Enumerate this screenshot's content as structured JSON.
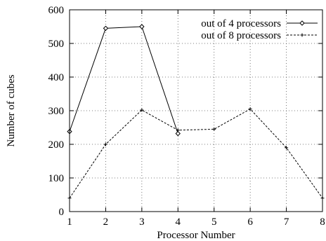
{
  "chart_data": {
    "type": "line",
    "title": "",
    "xlabel": "Processor Number",
    "ylabel": "Number of cubes",
    "x": [
      1,
      2,
      3,
      4,
      5,
      6,
      7,
      8
    ],
    "xlim": [
      1,
      8
    ],
    "ylim": [
      0,
      600
    ],
    "xticks": [
      1,
      2,
      3,
      4,
      5,
      6,
      7,
      8
    ],
    "yticks": [
      0,
      100,
      200,
      300,
      400,
      500,
      600
    ],
    "grid": true,
    "legend_position": "top-right",
    "series": [
      {
        "name": "out of 4 processors",
        "x": [
          1,
          2,
          3,
          4
        ],
        "values": [
          238,
          545,
          550,
          232
        ],
        "line_style": "solid",
        "marker": "diamond",
        "color": "#000000"
      },
      {
        "name": "out of 8 processors",
        "x": [
          1,
          2,
          3,
          4,
          5,
          6,
          7,
          8
        ],
        "values": [
          40,
          200,
          302,
          242,
          245,
          305,
          190,
          40
        ],
        "line_style": "dashed",
        "marker": "plus",
        "color": "#000000"
      }
    ]
  }
}
